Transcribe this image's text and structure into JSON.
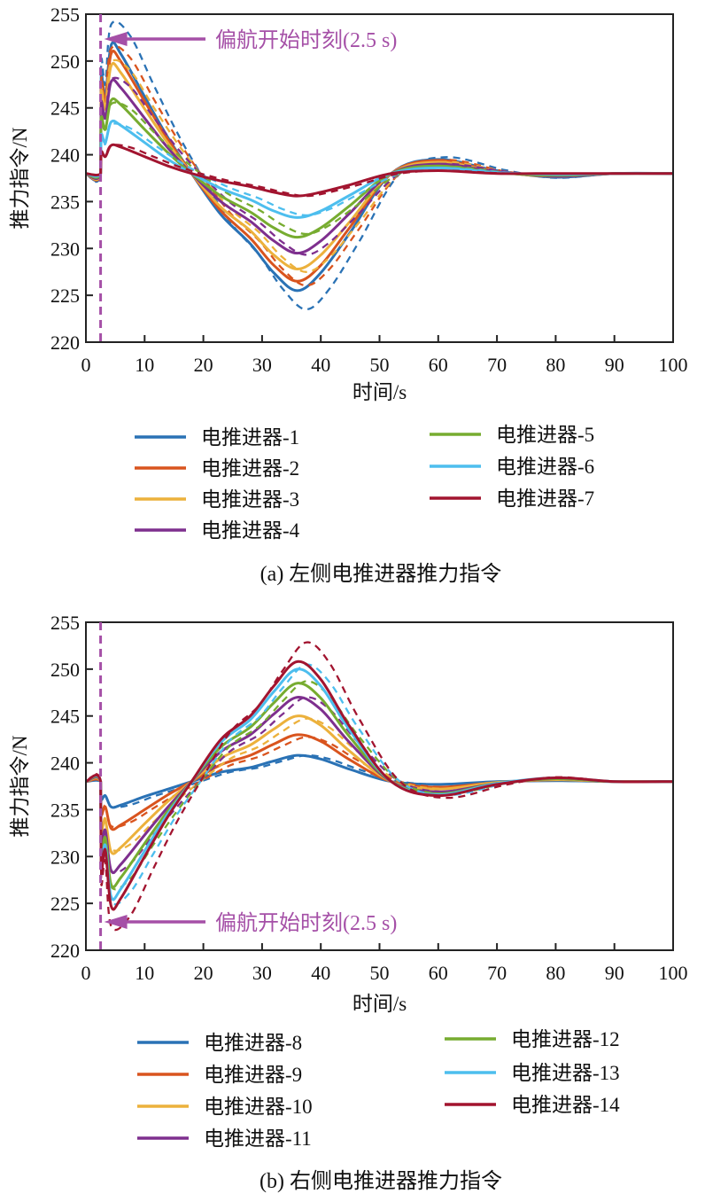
{
  "chart_data": [
    {
      "type": "line",
      "caption": "(a) 左侧电推进器推力指令",
      "xlabel": "时间/s",
      "ylabel": "推力指令/N",
      "xlim": [
        0,
        100
      ],
      "ylim": [
        220,
        255
      ],
      "xticks": [
        0,
        10,
        20,
        30,
        40,
        50,
        60,
        70,
        80,
        90,
        100
      ],
      "yticks": [
        220,
        225,
        230,
        235,
        240,
        245,
        250,
        255
      ],
      "annotation": {
        "text": "偏航开始时刻(2.5 s)",
        "x": 2.5,
        "y": 252.5,
        "color": "#a550a7"
      },
      "legend_placement": "below",
      "x": [
        0,
        2.5,
        2.6,
        3.3,
        4.3,
        6,
        10,
        14,
        18,
        23,
        28,
        32,
        36,
        40,
        45,
        52,
        60,
        70,
        80,
        90,
        100
      ],
      "series": [
        {
          "name": "电推进器-1",
          "color": "#2a72b5",
          "dashed_gain": 1.16,
          "values": [
            238,
            238,
            248.3,
            246.2,
            251.7,
            250.7,
            246.2,
            241.8,
            238,
            233.6,
            230.5,
            227.4,
            225.5,
            227.4,
            231.7,
            238,
            239.5,
            238.3,
            237.6,
            238,
            238
          ]
        },
        {
          "name": "电推进器-2",
          "color": "#d9541e",
          "dashed_gain": 1.04,
          "values": [
            238,
            238,
            247.6,
            245.7,
            250.8,
            249.9,
            245.7,
            241.6,
            238,
            234,
            231.1,
            228.2,
            226.5,
            228.2,
            232.3,
            238,
            239.4,
            238.2,
            237.7,
            238,
            238
          ]
        },
        {
          "name": "电推进器-3",
          "color": "#ecb13c",
          "dashed_gain": 1.03,
          "values": [
            238,
            238,
            246.6,
            244.9,
            249.5,
            248.7,
            244.9,
            241.2,
            238,
            234.4,
            231.9,
            229.3,
            227.8,
            229.3,
            232.9,
            238,
            239.2,
            238.2,
            237.7,
            238,
            238
          ]
        },
        {
          "name": "电推进器-4",
          "color": "#7e2f8e",
          "dashed_gain": 1.02,
          "values": [
            238,
            238,
            245.4,
            243.9,
            247.8,
            247.1,
            243.9,
            240.7,
            238,
            235,
            232.9,
            230.8,
            229.5,
            230.8,
            233.8,
            238,
            239,
            238.2,
            237.7,
            238,
            238
          ]
        },
        {
          "name": "电推进器-5",
          "color": "#77ac30",
          "dashed_gain": 0.95,
          "values": [
            238,
            238,
            243.9,
            242.7,
            245.8,
            245.3,
            242.7,
            240.2,
            238,
            235.6,
            233.9,
            232.2,
            231.2,
            232.2,
            234.6,
            238,
            238.8,
            238.1,
            237.8,
            238,
            238
          ]
        },
        {
          "name": "电推进器-6",
          "color": "#4dbeee",
          "dashed_gain": 0.95,
          "values": [
            238,
            238,
            242.1,
            241.3,
            243.5,
            243.1,
            241.3,
            239.5,
            238,
            236.4,
            235.2,
            234,
            233.3,
            234,
            235.7,
            238,
            238.6,
            238.1,
            237.9,
            238,
            238
          ]
        },
        {
          "name": "电推进器-7",
          "color": "#a2142f",
          "dashed_gain": 1.0,
          "values": [
            238,
            238,
            240.3,
            239.8,
            241,
            240.8,
            239.8,
            238.8,
            238,
            237.2,
            236.6,
            236,
            235.6,
            236,
            236.8,
            238,
            238.3,
            238,
            238,
            238,
            238
          ]
        }
      ]
    },
    {
      "type": "line",
      "caption": "(b) 右侧电推进器推力指令",
      "xlabel": "时间/s",
      "ylabel": "推力指令/N",
      "xlim": [
        0,
        100
      ],
      "ylim": [
        220,
        255
      ],
      "xticks": [
        0,
        10,
        20,
        30,
        40,
        50,
        60,
        70,
        80,
        90,
        100
      ],
      "yticks": [
        220,
        225,
        230,
        235,
        240,
        245,
        250,
        255
      ],
      "annotation": {
        "text": "偏航开始时刻(2.5 s)",
        "x": 2.5,
        "y": 222.5,
        "color": "#a550a7"
      },
      "legend_placement": "below",
      "x": [
        0,
        2.5,
        2.6,
        3.3,
        4.3,
        6,
        10,
        14,
        18,
        23,
        28,
        32,
        36,
        40,
        45,
        52,
        60,
        70,
        80,
        90,
        100
      ],
      "series": [
        {
          "name": "电推进器-8",
          "color": "#2a72b5",
          "dashed_gain": 1.0,
          "values": [
            238,
            238,
            236.1,
            236.5,
            235.3,
            235.5,
            236.4,
            237.2,
            238,
            239,
            239.5,
            240.2,
            240.8,
            240.4,
            239.3,
            238,
            237.7,
            238,
            238.1,
            238,
            238
          ]
        },
        {
          "name": "电推进器-9",
          "color": "#d9541e",
          "dashed_gain": 0.95,
          "values": [
            238,
            238,
            234.5,
            235.3,
            233,
            233.4,
            235,
            236.6,
            238,
            239.8,
            240.8,
            242,
            243,
            242.3,
            240.3,
            238,
            237.4,
            237.9,
            238.2,
            238,
            238
          ]
        },
        {
          "name": "电推进器-10",
          "color": "#ecb13c",
          "dashed_gain": 0.96,
          "values": [
            238,
            238,
            232.8,
            233.9,
            230.5,
            231,
            233.5,
            235.9,
            238,
            240.5,
            241.9,
            243.6,
            245,
            244,
            241.2,
            238,
            237.2,
            237.9,
            238.2,
            238,
            238
          ]
        },
        {
          "name": "电推进器-11",
          "color": "#7e2f8e",
          "dashed_gain": 1.0,
          "values": [
            238,
            238,
            231.4,
            232.8,
            228.5,
            229.2,
            232.3,
            235.3,
            238,
            241.2,
            243,
            245.2,
            247,
            245.7,
            242.1,
            238,
            236.9,
            237.8,
            238.3,
            238,
            238
          ]
        },
        {
          "name": "电推进器-12",
          "color": "#77ac30",
          "dashed_gain": 1.02,
          "values": [
            238,
            238,
            230.3,
            232,
            227,
            227.8,
            231.4,
            234.9,
            238,
            241.7,
            243.8,
            246.4,
            248.5,
            246.9,
            242.7,
            238,
            236.7,
            237.8,
            238.3,
            238,
            238
          ]
        },
        {
          "name": "电推进器-13",
          "color": "#4dbeee",
          "dashed_gain": 1.04,
          "values": [
            238,
            238,
            229.4,
            231.2,
            225.7,
            226.6,
            230.6,
            234.6,
            238,
            242.2,
            244.6,
            247.6,
            250,
            248.2,
            243.4,
            238,
            236.6,
            237.8,
            238.4,
            238,
            238
          ]
        },
        {
          "name": "电推进器-14",
          "color": "#a2142f",
          "dashed_gain": 1.16,
          "values": [
            238,
            238,
            228.7,
            230.7,
            224.7,
            225.6,
            230,
            234.3,
            238,
            242.5,
            245,
            248.2,
            250.8,
            248.9,
            243.8,
            238,
            236.5,
            237.7,
            238.4,
            238,
            238
          ]
        }
      ]
    }
  ]
}
